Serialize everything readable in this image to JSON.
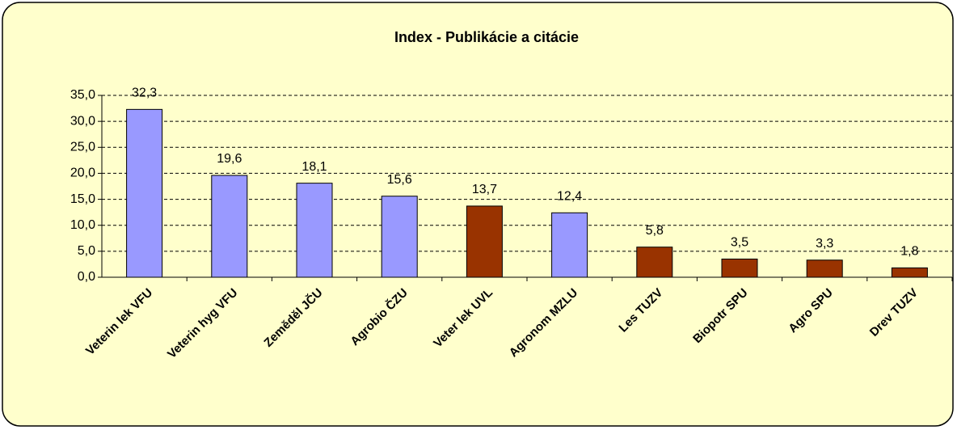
{
  "chart_data": {
    "type": "bar",
    "title": "Index - Publikácie a citácie",
    "categories": [
      "Veterin lek VFU",
      "Veterin hyg VFU",
      "Zeměděl JČU",
      "Agrobio ČZU",
      "Veter lek UVL",
      "Agronom MZLU",
      "Les TUZV",
      "Biopotr SPU",
      "Agro SPU",
      "Drev TUZV"
    ],
    "values": [
      32.3,
      19.6,
      18.1,
      15.6,
      13.7,
      12.4,
      5.8,
      3.5,
      3.3,
      1.8
    ],
    "value_labels": [
      "32,3",
      "19,6",
      "18,1",
      "15,6",
      "13,7",
      "12,4",
      "5,8",
      "3,5",
      "3,3",
      "1,8"
    ],
    "colors": [
      "#9999ff",
      "#9999ff",
      "#9999ff",
      "#9999ff",
      "#993300",
      "#9999ff",
      "#993300",
      "#993300",
      "#993300",
      "#993300"
    ],
    "ylim": [
      0,
      35
    ],
    "yticks": [
      {
        "value": 0,
        "label": "0,0"
      },
      {
        "value": 5,
        "label": "5,0"
      },
      {
        "value": 10,
        "label": "10,0"
      },
      {
        "value": 15,
        "label": "15,0"
      },
      {
        "value": 20,
        "label": "20,0"
      },
      {
        "value": 25,
        "label": "25,0"
      },
      {
        "value": 30,
        "label": "30,0"
      },
      {
        "value": 35,
        "label": "35,0"
      }
    ],
    "grid": true
  }
}
